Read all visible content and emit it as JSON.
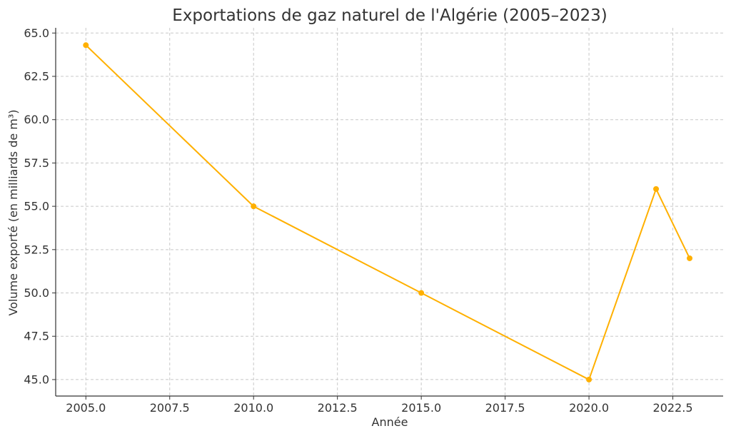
{
  "chart_data": {
    "type": "line",
    "title": "Exportations de gaz naturel de l'Algérie (2005–2023)",
    "xlabel": "Année",
    "ylabel": "Volume exporté (en milliards de m³)",
    "xlim": [
      2004.1,
      2024.0
    ],
    "ylim": [
      44.05,
      65.3
    ],
    "xticks": [
      "2005.0",
      "2007.5",
      "2010.0",
      "2012.5",
      "2015.0",
      "2017.5",
      "2020.0",
      "2022.5"
    ],
    "yticks": [
      "45.0",
      "47.5",
      "50.0",
      "52.5",
      "55.0",
      "57.5",
      "60.0",
      "62.5",
      "65.0"
    ],
    "grid": true,
    "series": [
      {
        "color": "#FFB000",
        "x": [
          2005,
          2010,
          2015,
          2020,
          2022,
          2023
        ],
        "y": [
          64.3,
          55.0,
          50.0,
          45.0,
          56.0,
          52.0
        ]
      }
    ]
  }
}
